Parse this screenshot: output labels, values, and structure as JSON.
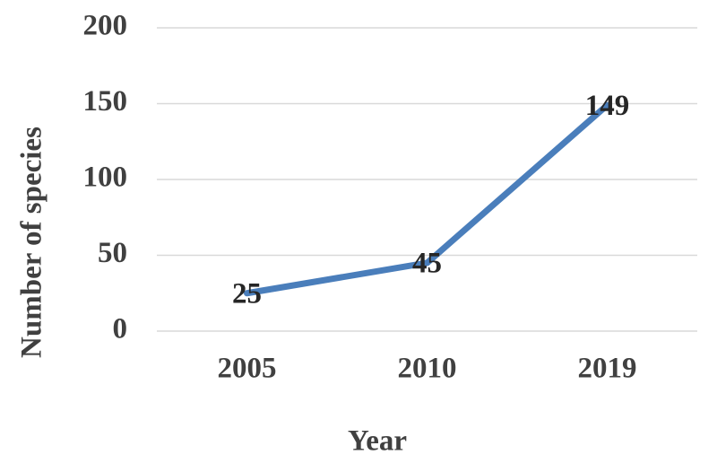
{
  "chart_data": {
    "type": "line",
    "x_label": "Year",
    "y_label": "Number of species",
    "categories": [
      "2005",
      "2010",
      "2019"
    ],
    "values": [
      25,
      45,
      149
    ],
    "color": "#4a7ebb",
    "ylim": [
      0,
      200
    ],
    "yticks": [
      0,
      50,
      100,
      150,
      200
    ],
    "grid": true,
    "data_labels": true
  }
}
